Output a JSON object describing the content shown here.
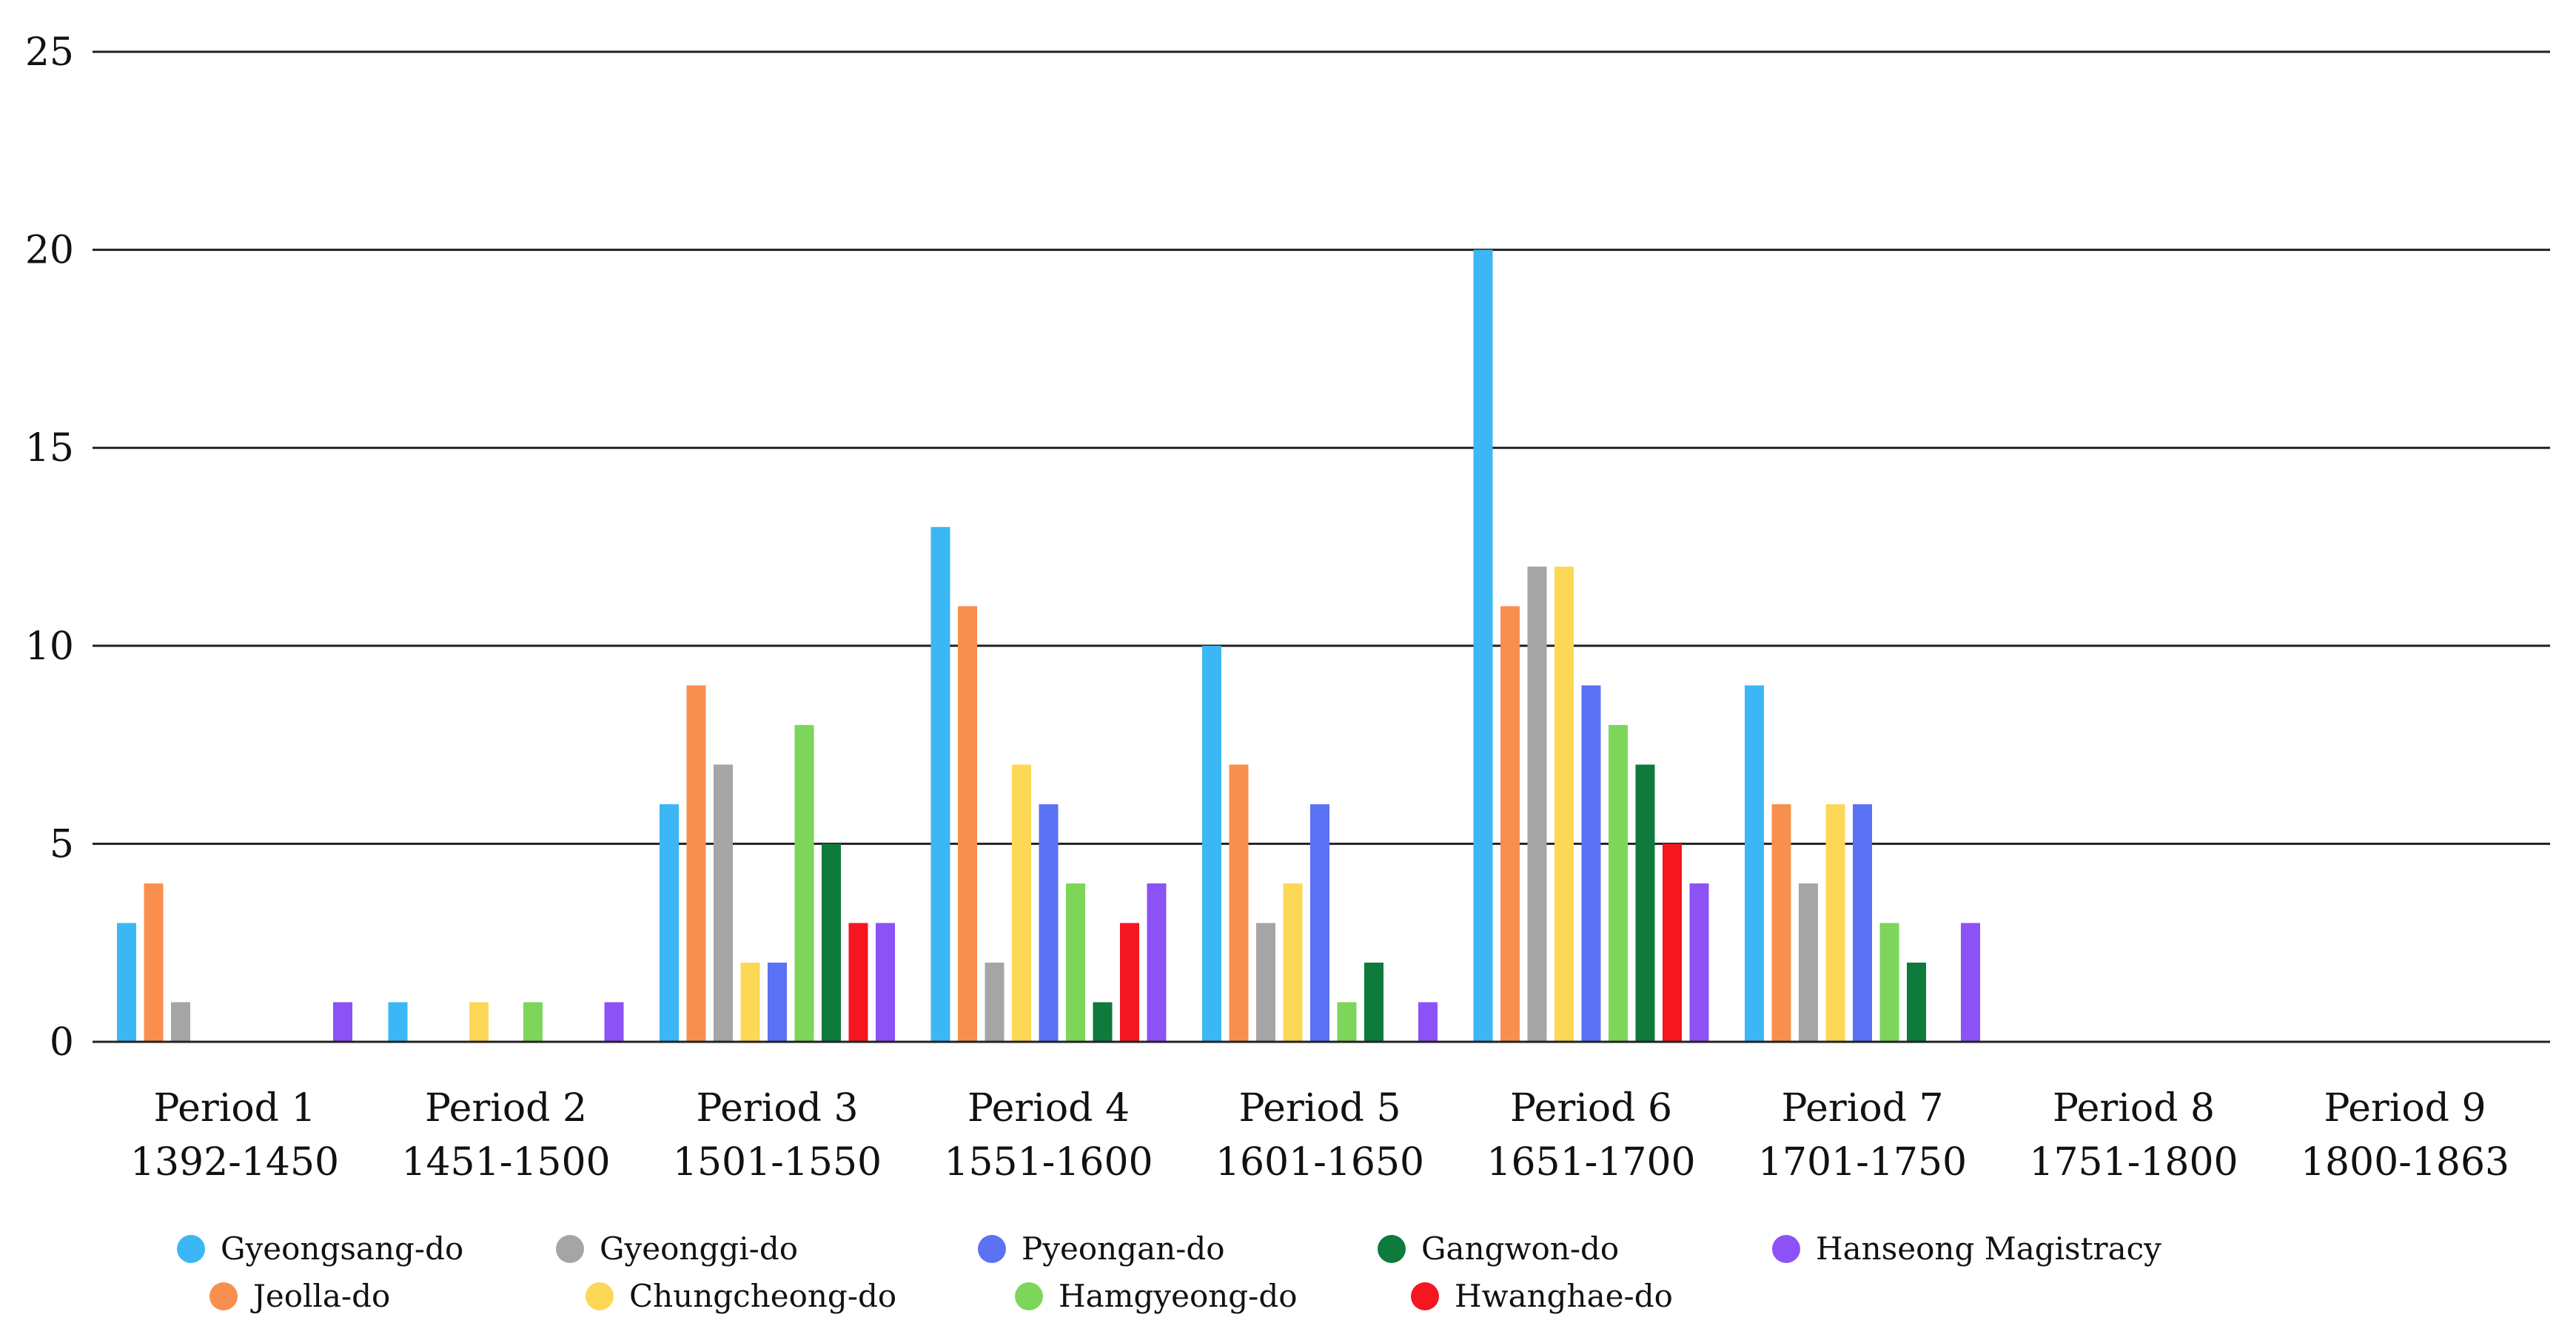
{
  "chart_data": {
    "type": "bar",
    "ylim": [
      0,
      25
    ],
    "yticks": [
      "0",
      "5",
      "10",
      "15",
      "20",
      "25"
    ],
    "grid": true,
    "legend_position": "bottom",
    "categories": [
      {
        "label": "Period 1",
        "range": "1392-1450"
      },
      {
        "label": "Period 2",
        "range": "1451-1500"
      },
      {
        "label": "Period 3",
        "range": "1501-1550"
      },
      {
        "label": "Period 4",
        "range": "1551-1600"
      },
      {
        "label": "Period 5",
        "range": "1601-1650"
      },
      {
        "label": "Period 6",
        "range": "1651-1700"
      },
      {
        "label": "Period 7",
        "range": "1701-1750"
      },
      {
        "label": "Period 8",
        "range": "1751-1800"
      },
      {
        "label": "Period 9",
        "range": "1800-1863"
      }
    ],
    "series": [
      {
        "name": "Gyeongsang-do",
        "color": "#3bb7f5",
        "values": [
          3,
          1,
          6,
          13,
          10,
          20,
          9,
          0,
          0
        ]
      },
      {
        "name": "Jeolla-do",
        "color": "#f98f4e",
        "values": [
          4,
          0,
          9,
          11,
          7,
          11,
          6,
          0,
          0
        ]
      },
      {
        "name": "Gyeonggi-do",
        "color": "#a5a5a5",
        "values": [
          1,
          0,
          7,
          2,
          3,
          12,
          4,
          0,
          0
        ]
      },
      {
        "name": "Chungcheong-do",
        "color": "#fdd756",
        "values": [
          0,
          1,
          2,
          7,
          4,
          12,
          6,
          0,
          0
        ]
      },
      {
        "name": "Pyeongan-do",
        "color": "#5b72f5",
        "values": [
          0,
          0,
          2,
          6,
          6,
          9,
          6,
          0,
          0
        ]
      },
      {
        "name": "Hamgyeong-do",
        "color": "#7dd65a",
        "values": [
          0,
          1,
          8,
          4,
          1,
          8,
          3,
          0,
          0
        ]
      },
      {
        "name": "Gangwon-do",
        "color": "#0e7a3b",
        "values": [
          0,
          0,
          5,
          1,
          2,
          7,
          2,
          0,
          0
        ]
      },
      {
        "name": "Hwanghae-do",
        "color": "#f5161f",
        "values": [
          0,
          0,
          3,
          3,
          0,
          5,
          0,
          0,
          0
        ]
      },
      {
        "name": "Hanseong Magistracy",
        "color": "#8c52f5",
        "values": [
          1,
          1,
          3,
          4,
          1,
          4,
          3,
          0,
          0
        ]
      }
    ]
  }
}
